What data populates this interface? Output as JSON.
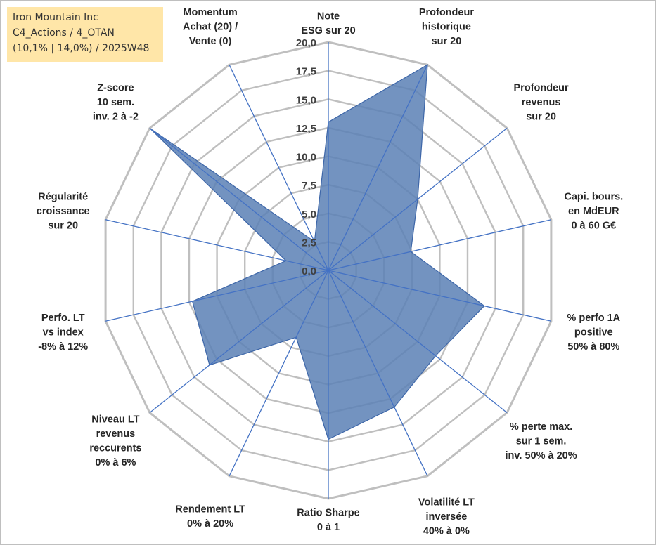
{
  "info": {
    "line1": "Iron Mountain Inc",
    "line2": "C4_Actions / 4_OTAN",
    "line3": "(10,1% | 14,0%) / 2025W48"
  },
  "chart_data": {
    "type": "radar",
    "title": "",
    "rmin": 0,
    "rmax": 20,
    "ticks": [
      "0,0",
      "2,5",
      "5,0",
      "7,5",
      "10,0",
      "12,5",
      "15,0",
      "17,5",
      "20,0"
    ],
    "axes": [
      {
        "label": [
          "Note",
          "ESG sur 20"
        ],
        "value": 13.0
      },
      {
        "label": [
          "Profondeur",
          "historique",
          "sur 20"
        ],
        "value": 20.0
      },
      {
        "label": [
          "Profondeur",
          "revenus",
          "sur 20"
        ],
        "value": 10.0
      },
      {
        "label": [
          "Capi. bours.",
          "en MdEUR",
          "0 à 60 G€"
        ],
        "value": 7.4
      },
      {
        "label": [
          "% perfo 1A",
          "positive",
          "50% à 80%"
        ],
        "value": 14.0
      },
      {
        "label": [
          "% perte max.",
          "sur 1 sem.",
          "inv. 50% à 20%"
        ],
        "value": 12.0
      },
      {
        "label": [
          "Volatilité LT",
          "inversée",
          "40% à 0%"
        ],
        "value": 13.3
      },
      {
        "label": [
          "Ratio Sharpe",
          "0 à 1"
        ],
        "value": 14.8
      },
      {
        "label": [
          "Rendement LT",
          "0% à 20%"
        ],
        "value": 6.5
      },
      {
        "label": [
          "Niveau LT",
          "revenus",
          "reccurents",
          "0% à 6%"
        ],
        "value": 13.3
      },
      {
        "label": [
          "Perfo. LT",
          "vs index",
          "-8% à 12%"
        ],
        "value": 12.2
      },
      {
        "label": [
          "Régularité",
          "croissance",
          "sur 20"
        ],
        "value": 3.8
      },
      {
        "label": [
          "Z-score",
          "10 sem.",
          "inv. 2 à -2"
        ],
        "value": 20.0
      },
      {
        "label": [
          "Momentum",
          "Achat (20) /",
          "Vente (0)"
        ],
        "value": 2.8
      }
    ],
    "colors": {
      "fill": "#5b80b5",
      "stroke": "#3d66a8",
      "spoke": "#4472c4",
      "grid": "#bfbfbf"
    }
  }
}
